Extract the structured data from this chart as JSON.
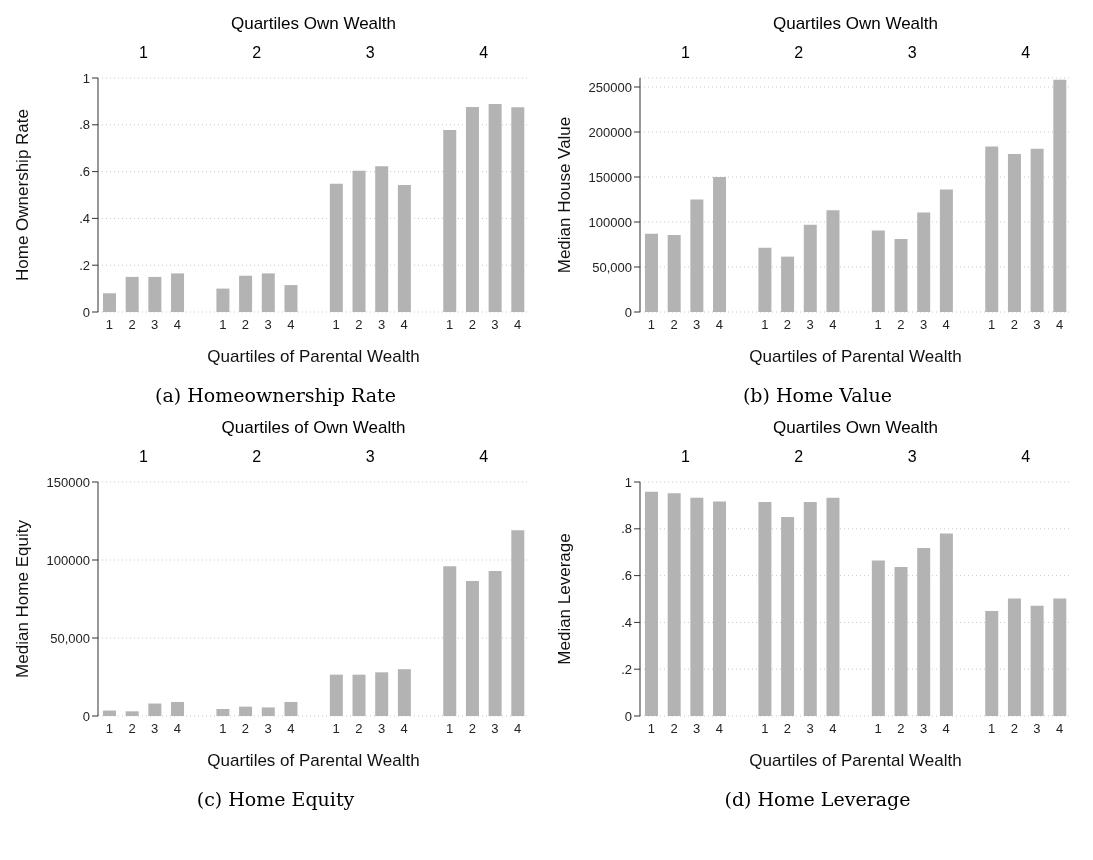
{
  "chart_data": [
    {
      "type": "bar",
      "title": "(a) Homeownership Rate",
      "xlabel": "Quartiles of Parental Wealth",
      "ylabel": "Home Ownership Rate",
      "x2label": "Quartiles Own Wealth",
      "annotations": [
        "1",
        "2",
        "3",
        "4"
      ],
      "categories": [
        "1",
        "2",
        "3",
        "4",
        null,
        "1",
        "2",
        "3",
        "4",
        null,
        "1",
        "2",
        "3",
        "4",
        null,
        "1",
        "2",
        "3",
        "4"
      ],
      "values": [
        0.08,
        0.15,
        0.15,
        0.165,
        null,
        0.1,
        0.155,
        0.165,
        0.115,
        null,
        0.548,
        0.604,
        0.623,
        0.543,
        null,
        0.778,
        0.876,
        0.889,
        0.875
      ],
      "color": "#b3b3b3",
      "ylim": [
        0,
        1
      ],
      "yticks": [
        0,
        {
          "value": 0.2,
          "label": ".2"
        },
        {
          "value": 0.4,
          "label": ".4"
        },
        {
          "value": 0.6,
          "label": ".6"
        },
        {
          "value": 0.8,
          "label": ".8"
        },
        1
      ],
      "grid": "y"
    },
    {
      "type": "bar",
      "title": "(b) Home Value",
      "xlabel": "Quartiles of Parental Wealth",
      "ylabel": "Median House Value",
      "x2label": "Quartiles Own Wealth",
      "annotations": [
        "1",
        "2",
        "3",
        "4"
      ],
      "categories": [
        "1",
        "2",
        "3",
        "4",
        null,
        "1",
        "2",
        "3",
        "4",
        null,
        "1",
        "2",
        "3",
        "4",
        null,
        "1",
        "2",
        "3",
        "4"
      ],
      "values": [
        87000,
        85500,
        125000,
        150000,
        null,
        71500,
        61500,
        97000,
        113000,
        null,
        90500,
        81000,
        110500,
        136000,
        null,
        184000,
        175500,
        181500,
        258000
      ],
      "color": "#b3b3b3",
      "ylim": [
        0,
        260000
      ],
      "yticks": [
        0,
        {
          "value": 50000,
          "label": "50,000"
        },
        100000,
        150000,
        200000,
        250000
      ],
      "grid": "y"
    },
    {
      "type": "bar",
      "title": "(c) Home Equity",
      "xlabel": "Quartiles of Parental Wealth",
      "ylabel": "Median Home Equity",
      "x2label": "Quartiles of Own Wealth",
      "annotations": [
        "1",
        "2",
        "3",
        "4"
      ],
      "categories": [
        "1",
        "2",
        "3",
        "4",
        null,
        "1",
        "2",
        "3",
        "4",
        null,
        "1",
        "2",
        "3",
        "4",
        null,
        "1",
        "2",
        "3",
        "4"
      ],
      "values": [
        3500,
        3000,
        8000,
        9000,
        null,
        4500,
        6000,
        5500,
        9000,
        null,
        26500,
        26500,
        28000,
        30000,
        null,
        96000,
        86500,
        93000,
        119000
      ],
      "color": "#b3b3b3",
      "ylim": [
        0,
        150000
      ],
      "yticks": [
        0,
        {
          "value": 50000,
          "label": "50,000"
        },
        100000,
        150000
      ],
      "grid": "y"
    },
    {
      "type": "bar",
      "title": "(d) Home Leverage",
      "xlabel": "Quartiles of Parental Wealth",
      "ylabel": "Median Leverage",
      "x2label": "Quartiles Own Wealth",
      "annotations": [
        "1",
        "2",
        "3",
        "4"
      ],
      "categories": [
        "1",
        "2",
        "3",
        "4",
        null,
        "1",
        "2",
        "3",
        "4",
        null,
        "1",
        "2",
        "3",
        "4",
        null,
        "1",
        "2",
        "3",
        "4"
      ],
      "values": [
        0.958,
        0.952,
        0.933,
        0.917,
        null,
        0.914,
        0.85,
        0.914,
        0.933,
        null,
        0.665,
        0.637,
        0.718,
        0.78,
        null,
        0.449,
        0.502,
        0.471,
        0.502
      ],
      "color": "#b3b3b3",
      "ylim": [
        0,
        1
      ],
      "yticks": [
        0,
        {
          "value": 0.2,
          "label": ".2"
        },
        {
          "value": 0.4,
          "label": ".4"
        },
        {
          "value": 0.6,
          "label": ".6"
        },
        {
          "value": 0.8,
          "label": ".8"
        },
        1
      ],
      "grid": "y"
    }
  ]
}
